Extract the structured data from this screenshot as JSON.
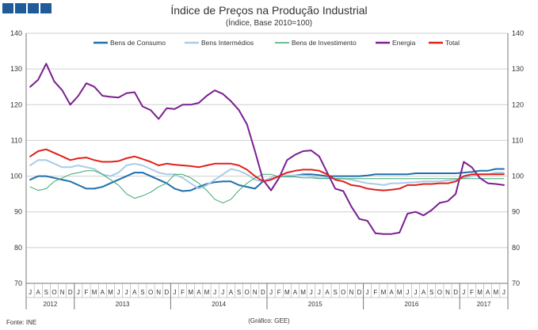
{
  "header": {
    "title": "Índice de Preços na Produção Industrial",
    "subtitle": "(Índice, Base 2010=100)"
  },
  "footer": {
    "source": "Fonte: INE",
    "credit": "(Gráfico: GEE)"
  },
  "colors": {
    "logo": "#1f5b98",
    "consumo": "#1f6fad",
    "intermedios": "#a9cce8",
    "investimento": "#3aa86d",
    "energia": "#7a1f8f",
    "total": "#e0201b",
    "grid": "#cfcfcf"
  },
  "chart_data": {
    "type": "line",
    "ylim": [
      70,
      140
    ],
    "yticks": [
      70,
      80,
      90,
      100,
      110,
      120,
      130,
      140
    ],
    "grid": true,
    "legend_position": "top",
    "months": [
      "J",
      "A",
      "S",
      "O",
      "N",
      "D",
      "J",
      "F",
      "M",
      "A",
      "M",
      "J",
      "J",
      "A",
      "S",
      "O",
      "N",
      "D",
      "J",
      "F",
      "M",
      "A",
      "M",
      "J",
      "J",
      "A",
      "S",
      "O",
      "N",
      "D",
      "J",
      "F",
      "M",
      "A",
      "M",
      "J",
      "J",
      "A",
      "S",
      "O",
      "N",
      "D",
      "J",
      "F",
      "M",
      "A",
      "M",
      "J",
      "J",
      "A",
      "S",
      "O",
      "N",
      "D",
      "J",
      "F",
      "M",
      "A",
      "M",
      "J"
    ],
    "years": [
      {
        "label": "2012",
        "start": 0,
        "count": 6
      },
      {
        "label": "2013",
        "start": 6,
        "count": 12
      },
      {
        "label": "2014",
        "start": 18,
        "count": 12
      },
      {
        "label": "2015",
        "start": 30,
        "count": 12
      },
      {
        "label": "2016",
        "start": 42,
        "count": 12
      },
      {
        "label": "2017",
        "start": 54,
        "count": 6
      }
    ],
    "series": [
      {
        "name": "Bens de Consumo",
        "color_key": "consumo",
        "width": 2,
        "values": [
          99,
          100,
          100,
          99.5,
          99,
          98.5,
          97.5,
          96.5,
          96.5,
          97,
          98,
          99,
          100,
          101,
          101,
          100,
          99,
          98,
          96.5,
          95.8,
          96,
          97,
          97.8,
          98.3,
          98.5,
          98.5,
          97.5,
          97,
          96.5,
          98.5,
          99.5,
          100,
          100,
          100.2,
          100.5,
          100.5,
          100.3,
          100,
          100,
          100,
          100,
          100,
          100.2,
          100.5,
          100.5,
          100.5,
          100.5,
          100.5,
          100.8,
          100.8,
          100.8,
          100.8,
          100.8,
          100.8,
          101,
          101.2,
          101.5,
          101.5,
          102,
          102
        ]
      },
      {
        "name": "Bens Intermédios",
        "color_key": "intermedios",
        "width": 2,
        "values": [
          103,
          104.5,
          104.5,
          103.5,
          102.5,
          102.5,
          103,
          102.5,
          102,
          100.5,
          100,
          101,
          103,
          103.5,
          103,
          102,
          101,
          100.5,
          100.5,
          99.5,
          98,
          96.5,
          97.5,
          99,
          100.5,
          102,
          101.5,
          100.5,
          99,
          98.5,
          99.5,
          100,
          100.2,
          100.2,
          100.2,
          100,
          99.5,
          99.5,
          99.3,
          99.3,
          99,
          98.5,
          98,
          97.8,
          97.5,
          98,
          98,
          98.2,
          98.3,
          98.5,
          98.5,
          98.5,
          98.8,
          99,
          99.5,
          100,
          100.5,
          100.5,
          101,
          101
        ]
      },
      {
        "name": "Bens de Investimento",
        "color_key": "investimento",
        "width": 1,
        "values": [
          97,
          96,
          96.5,
          98.5,
          99.5,
          100.5,
          101,
          101.5,
          101.5,
          100.5,
          99,
          97.5,
          95,
          93.8,
          94.5,
          95.5,
          97,
          98,
          100.5,
          100.5,
          99.5,
          98,
          96,
          93.5,
          92.5,
          93.5,
          96,
          98,
          99.5,
          100.5,
          100.5,
          99.8,
          99.8,
          99.8,
          99.5,
          99.5,
          99.3,
          99.3,
          99.3,
          99.3,
          99.3,
          99.3,
          99.3,
          99.3,
          99.3,
          99.3,
          99.3,
          99.3,
          99.3,
          99.3,
          99.3,
          99.3,
          99.3,
          99.3,
          99.3,
          99.3,
          99.3,
          99.3,
          99.3,
          99.3
        ]
      },
      {
        "name": "Energia",
        "color_key": "energia",
        "width": 2,
        "values": [
          125,
          127,
          131.5,
          126.5,
          124,
          120,
          122.5,
          126,
          125,
          122.5,
          122.2,
          122,
          123.2,
          123.5,
          119.5,
          118.5,
          116,
          119,
          118.8,
          120,
          120,
          120.5,
          122.5,
          124,
          123,
          121,
          118.5,
          114.5,
          107,
          99,
          96,
          99.5,
          104.5,
          106,
          107,
          107.2,
          105.5,
          101,
          96.5,
          95.8,
          91.5,
          88,
          87.5,
          84,
          83.8,
          83.8,
          84.2,
          89.5,
          90,
          89,
          90.5,
          92.5,
          93,
          95,
          104,
          102.5,
          99.5,
          98,
          97.8,
          97.5
        ]
      },
      {
        "name": "Total",
        "color_key": "total",
        "width": 2,
        "values": [
          105.5,
          107,
          107.5,
          106.5,
          105.5,
          104.5,
          105,
          105.2,
          104.5,
          104,
          104,
          104.2,
          105,
          105.5,
          104.8,
          104,
          103,
          103.5,
          103.2,
          103,
          102.8,
          102.5,
          103,
          103.5,
          103.5,
          103.5,
          103,
          101.8,
          100,
          98.5,
          99,
          100,
          101,
          101.5,
          101.8,
          101.8,
          101.5,
          100.5,
          99,
          98.5,
          97.5,
          97.2,
          96.5,
          96.2,
          96,
          96.2,
          96.5,
          97.5,
          97.5,
          97.8,
          97.8,
          98,
          98,
          98.5,
          100,
          100.5,
          100.5,
          100.5,
          100.5,
          100.5
        ]
      }
    ]
  }
}
